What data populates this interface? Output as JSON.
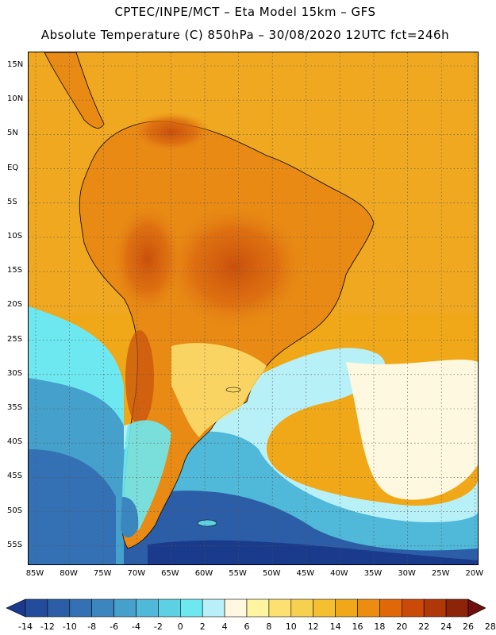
{
  "header": {
    "line1": "CPTEC/INPE/MCT –  Eta Model 15km – GFS",
    "line2": "Absolute Temperature (C) 850hPa – 30/08/2020 12UTC fct=246h"
  },
  "map": {
    "lat_labels": [
      "15N",
      "10N",
      "5N",
      "EQ",
      "5S",
      "10S",
      "15S",
      "20S",
      "25S",
      "30S",
      "35S",
      "40S",
      "45S",
      "50S",
      "55S"
    ],
    "lon_labels": [
      "85W",
      "80W",
      "75W",
      "70W",
      "65W",
      "60W",
      "55W",
      "50W",
      "45W",
      "40W",
      "35W",
      "30W",
      "25W",
      "20W"
    ]
  },
  "colorbar": {
    "labels": [
      "-14",
      "-12",
      "-10",
      "-8",
      "-6",
      "-4",
      "-2",
      "0",
      "2",
      "4",
      "6",
      "8",
      "10",
      "12",
      "14",
      "16",
      "18",
      "20",
      "22",
      "24",
      "26",
      "28"
    ],
    "colors": [
      "#1a3a8c",
      "#244c9c",
      "#2c5ea8",
      "#3470b4",
      "#3c86c0",
      "#45a0cc",
      "#50b8d8",
      "#5ed0e4",
      "#6ee8f0",
      "#b8f0f8",
      "#fff8e0",
      "#fff4a0",
      "#fce070",
      "#f8d050",
      "#f4c030",
      "#f0a818",
      "#ec8c10",
      "#e06808",
      "#cc4a08",
      "#b03808",
      "#8c2408",
      "#6e1010"
    ]
  }
}
